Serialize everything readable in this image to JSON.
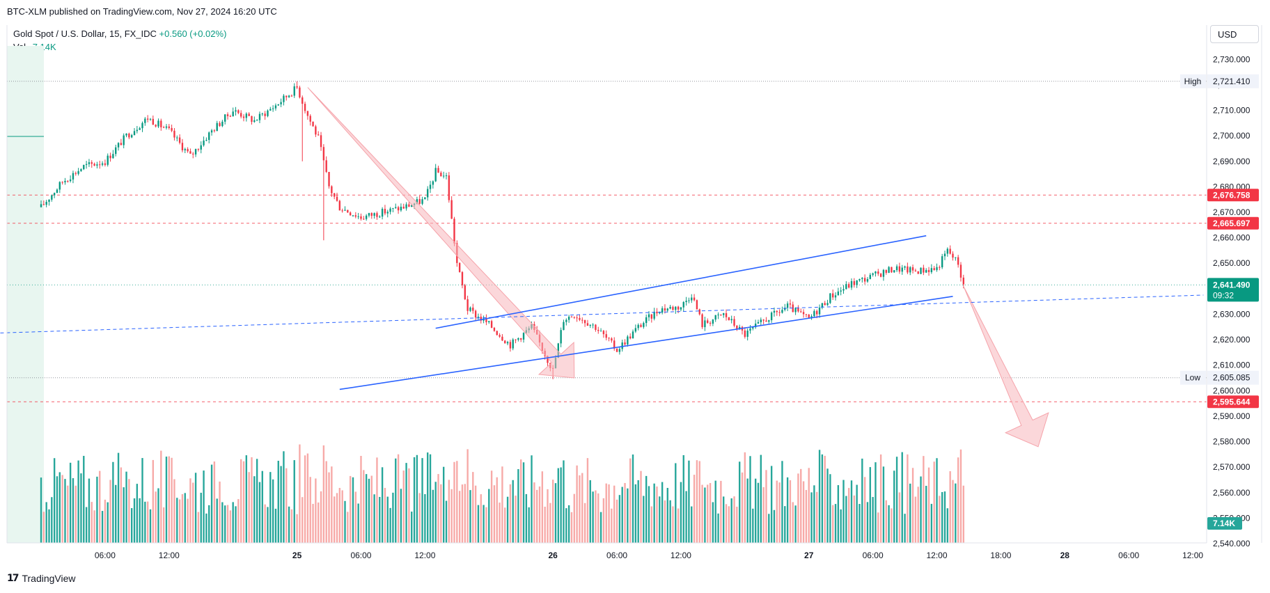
{
  "header": {
    "published": "BTC-XLM published on TradingView.com, Nov 27, 2024 16:20 UTC"
  },
  "legend": {
    "symbol": "Gold Spot / U.S. Dollar, 15, FX_IDC",
    "change": "+0.560 (+0.02%)",
    "volume_label": "Vol",
    "volume_value": "7.14K"
  },
  "currency": "USD",
  "footer": {
    "brand": "TradingView",
    "logo_icon": "tradingview-logo-icon"
  },
  "colors": {
    "up": "#089981",
    "down": "#f23645",
    "up_vol": "#26a69a",
    "down_vol": "#f7a9a7",
    "channel": "#2962ff",
    "arrow_fill": "#f8b6bb",
    "red_label": "#f23645",
    "green_label": "#089981"
  },
  "chart_data": {
    "type": "candlestick",
    "symbol": "Gold Spot / U.S. Dollar",
    "interval": "15",
    "ylim": [
      2540,
      2735
    ],
    "y_ticks": [
      "2,730.000",
      "2,720.000",
      "2,710.000",
      "2,700.000",
      "2,690.000",
      "2,680.000",
      "2,670.000",
      "2,660.000",
      "2,650.000",
      "2,640.000",
      "2,630.000",
      "2,620.000",
      "2,610.000",
      "2,600.000",
      "2,590.000",
      "2,580.000",
      "2,570.000",
      "2,560.000",
      "2,550.000",
      "2,540.000"
    ],
    "x_ticks": [
      "06:00",
      "12:00",
      "25",
      "06:00",
      "12:00",
      "26",
      "06:00",
      "12:00",
      "27",
      "06:00",
      "12:00",
      "18:00",
      "28",
      "06:00",
      "12:00"
    ],
    "x_tick_hours": [
      6,
      12,
      24,
      30,
      36,
      48,
      54,
      60,
      72,
      78,
      84,
      90,
      96,
      102,
      108
    ],
    "price_path_hours": [
      0,
      2,
      4,
      6,
      8,
      10,
      12,
      14,
      16,
      18,
      20,
      22,
      24,
      25,
      26,
      27,
      28,
      30,
      32,
      34,
      36,
      37,
      38,
      39,
      40,
      42,
      44,
      46,
      48,
      49,
      50,
      52,
      54,
      56,
      58,
      60,
      61,
      62,
      64,
      66,
      68,
      70,
      72,
      74,
      76,
      78,
      80,
      82,
      84,
      85,
      86,
      86.5
    ],
    "price_path_close": [
      2672,
      2682,
      2688,
      2690,
      2700,
      2707,
      2702,
      2692,
      2702,
      2710,
      2706,
      2712,
      2719,
      2708,
      2699,
      2680,
      2672,
      2668,
      2670,
      2672,
      2675,
      2686,
      2684,
      2650,
      2632,
      2626,
      2618,
      2625,
      2608,
      2628,
      2630,
      2625,
      2616,
      2625,
      2632,
      2633,
      2638,
      2626,
      2630,
      2622,
      2628,
      2633,
      2628,
      2637,
      2642,
      2645,
      2648,
      2647,
      2648,
      2655,
      2650,
      2641
    ],
    "volume": {
      "ylim": [
        0,
        90000
      ],
      "last_label": "7.14K"
    },
    "price_labels": [
      {
        "label": "High",
        "value": "2,721.410",
        "price": 2721.41,
        "style": "high"
      },
      {
        "label": "",
        "value": "2,676.758",
        "price": 2676.758,
        "style": "red"
      },
      {
        "label": "",
        "value": "2,665.697",
        "price": 2665.697,
        "style": "red"
      },
      {
        "label": "",
        "value": "2,641.490",
        "sub": "09:32",
        "price": 2641.49,
        "style": "green"
      },
      {
        "label": "Low",
        "value": "2,605.085",
        "price": 2605.085,
        "style": "low"
      },
      {
        "label": "",
        "value": "2,595.644",
        "price": 2595.644,
        "style": "red"
      }
    ],
    "channel": {
      "upper": [
        {
          "h": 37,
          "p": 2624.5
        },
        {
          "h": 83,
          "p": 2660.8
        }
      ],
      "lower": [
        {
          "h": 28,
          "p": 2600.5
        },
        {
          "h": 85.5,
          "p": 2637.0
        }
      ],
      "dashed_trend": [
        {
          "h": -5,
          "p": 2622.5
        },
        {
          "h": 109,
          "p": 2637.5
        }
      ]
    },
    "arrows": [
      {
        "from": {
          "h": 25,
          "p": 2719
        },
        "to": {
          "h": 50,
          "p": 2605
        }
      },
      {
        "from": {
          "h": 86.5,
          "p": 2641
        },
        "to": {
          "h": 93.5,
          "p": 2578
        }
      }
    ],
    "grid": false
  }
}
